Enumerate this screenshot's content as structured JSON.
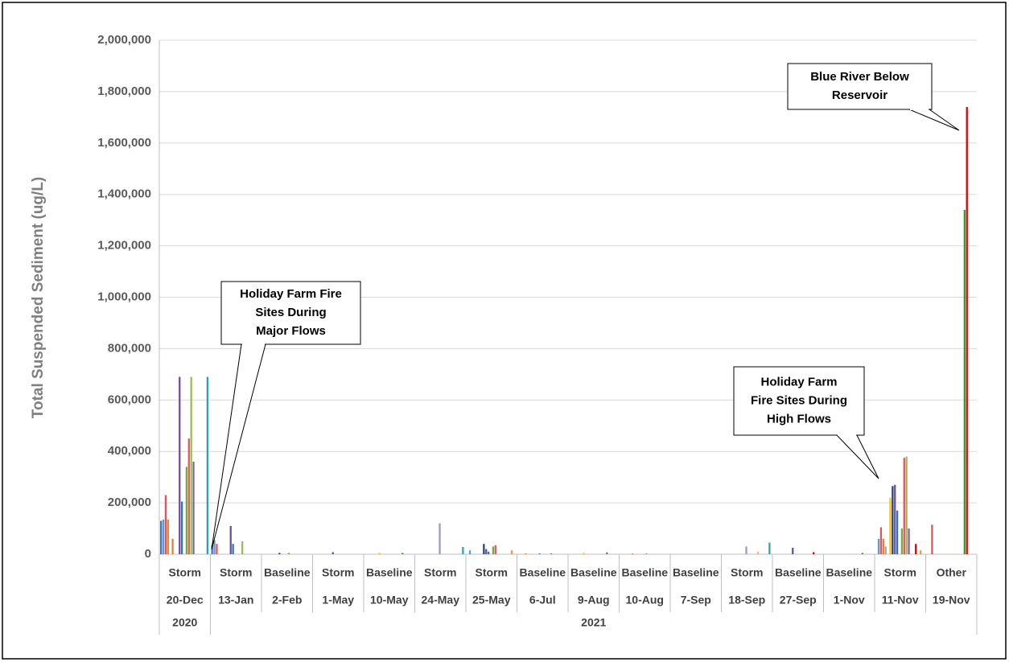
{
  "chart_data": {
    "type": "bar",
    "y_axis_label": "Total Suspended Sediment (ug/L)",
    "ylim": [
      0,
      2000000
    ],
    "yticks": [
      0,
      {
        "value": 200000,
        "label": "200,000"
      },
      {
        "value": 400000,
        "label": "400,000"
      },
      {
        "value": 600000,
        "label": "600,000"
      },
      {
        "value": 800000,
        "label": "800,000"
      },
      {
        "value": 1000000,
        "label": "1,000,000"
      },
      {
        "value": 1200000,
        "label": "1,200,000"
      },
      {
        "value": 1400000,
        "label": "1,400,000"
      },
      {
        "value": 1600000,
        "label": "1,600,000"
      },
      {
        "value": 1800000,
        "label": "1,800,000"
      },
      {
        "value": 2000000,
        "label": "2,000,000"
      }
    ],
    "grid": true,
    "categories": [
      [
        "Storm",
        "20-Dec",
        "2020"
      ],
      [
        "Storm",
        "13-Jan",
        "2021"
      ],
      [
        "Baseline",
        "2-Feb",
        null
      ],
      [
        "Storm",
        "1-May",
        null
      ],
      [
        "Baseline",
        "10-May",
        null
      ],
      [
        "Storm",
        "24-May",
        null
      ],
      [
        "Storm",
        "25-May",
        null
      ],
      [
        "Baseline",
        "6-Jul",
        null
      ],
      [
        "Baseline",
        "9-Aug",
        null
      ],
      [
        "Baseline",
        "10-Aug",
        null
      ],
      [
        "Baseline",
        "7-Sep",
        null
      ],
      [
        "Storm",
        "18-Sep",
        null
      ],
      [
        "Baseline",
        "27-Sep",
        null
      ],
      [
        "Baseline",
        "1-Nov",
        null
      ],
      [
        "Storm",
        "11-Nov",
        null
      ],
      [
        "Other",
        "19-Nov",
        null
      ]
    ],
    "colors": [
      "#4472c4",
      "#5b9bd5",
      "#e15759",
      "#ed7d31",
      "#a5a5a5",
      "#ed7d31",
      "#ffc000",
      "#264478",
      "#6f4e9c",
      "#2e75b6",
      "#9e9ac8",
      "#70ad47",
      "#e15759",
      "#9bbb59",
      "#8064a2",
      "#f4b183",
      "#2ca02c",
      "#e00000",
      "#4bacc6",
      "#f79646",
      "#2f9fb8",
      "#7f7f7f"
    ],
    "values": [
      [
        130000,
        135000,
        230000,
        135000,
        null,
        60000,
        null,
        null,
        690000,
        205000,
        null,
        340000,
        450000,
        690000,
        360000,
        null,
        null,
        null,
        null,
        null,
        690000,
        null
      ],
      [
        35000,
        55000,
        40000,
        null,
        null,
        null,
        null,
        null,
        110000,
        40000,
        null,
        null,
        null,
        50000,
        null,
        null,
        null,
        null,
        null,
        null,
        null,
        null
      ],
      [
        null,
        null,
        null,
        null,
        null,
        null,
        null,
        5000,
        null,
        null,
        null,
        5000,
        null,
        null,
        null,
        null,
        null,
        null,
        null,
        null,
        null,
        null
      ],
      [
        null,
        null,
        null,
        null,
        null,
        null,
        null,
        null,
        8000,
        null,
        null,
        null,
        null,
        null,
        null,
        null,
        null,
        null,
        null,
        null,
        null,
        null
      ],
      [
        null,
        null,
        null,
        null,
        null,
        null,
        5000,
        null,
        null,
        null,
        null,
        null,
        null,
        null,
        null,
        null,
        5000,
        null,
        null,
        null,
        null,
        null
      ],
      [
        null,
        null,
        null,
        null,
        null,
        null,
        null,
        null,
        null,
        null,
        120000,
        null,
        null,
        null,
        null,
        null,
        null,
        null,
        null,
        null,
        28000,
        null
      ],
      [
        null,
        15000,
        null,
        null,
        null,
        null,
        null,
        40000,
        20000,
        10000,
        null,
        30000,
        35000,
        null,
        null,
        null,
        null,
        null,
        null,
        15000,
        null,
        null
      ],
      [
        null,
        null,
        null,
        3000,
        null,
        null,
        null,
        null,
        null,
        3000,
        null,
        null,
        null,
        null,
        3000,
        null,
        null,
        null,
        null,
        null,
        null,
        null
      ],
      [
        null,
        null,
        null,
        null,
        null,
        null,
        5000,
        null,
        null,
        null,
        null,
        null,
        null,
        null,
        null,
        null,
        7000,
        null,
        null,
        null,
        null,
        null
      ],
      [
        null,
        null,
        null,
        null,
        null,
        3000,
        null,
        null,
        null,
        null,
        null,
        3000,
        null,
        null,
        null,
        null,
        null,
        null,
        null,
        null,
        null,
        null
      ],
      [
        null,
        null,
        null,
        null,
        null,
        null,
        null,
        null,
        null,
        null,
        null,
        null,
        null,
        null,
        null,
        null,
        null,
        null,
        null,
        null,
        null,
        null
      ],
      [
        null,
        null,
        null,
        null,
        null,
        null,
        null,
        null,
        null,
        null,
        30000,
        null,
        null,
        null,
        null,
        10000,
        null,
        null,
        null,
        null,
        45000,
        null
      ],
      [
        null,
        null,
        null,
        null,
        null,
        null,
        null,
        null,
        25000,
        null,
        null,
        null,
        null,
        null,
        null,
        null,
        null,
        8000,
        null,
        null,
        null,
        null
      ],
      [
        null,
        null,
        null,
        null,
        null,
        null,
        null,
        null,
        null,
        null,
        null,
        null,
        null,
        null,
        null,
        null,
        5000,
        null,
        null,
        null,
        null,
        null
      ],
      [
        null,
        60000,
        105000,
        60000,
        30000,
        null,
        220000,
        265000,
        270000,
        170000,
        null,
        100000,
        375000,
        380000,
        100000,
        null,
        null,
        40000,
        null,
        15000,
        null,
        null
      ],
      [
        null,
        null,
        115000,
        null,
        null,
        null,
        null,
        null,
        null,
        null,
        null,
        null,
        null,
        null,
        null,
        null,
        1340000,
        1740000,
        null,
        null,
        null,
        null
      ]
    ],
    "annotations": [
      {
        "lines": [
          "Holiday Farm Fire",
          "Sites During",
          "Major Flows"
        ]
      },
      {
        "lines": [
          "Holiday Farm",
          "Fire Sites During",
          "High Flows"
        ]
      },
      {
        "lines": [
          "Blue River Below",
          "Reservoir"
        ]
      }
    ]
  }
}
